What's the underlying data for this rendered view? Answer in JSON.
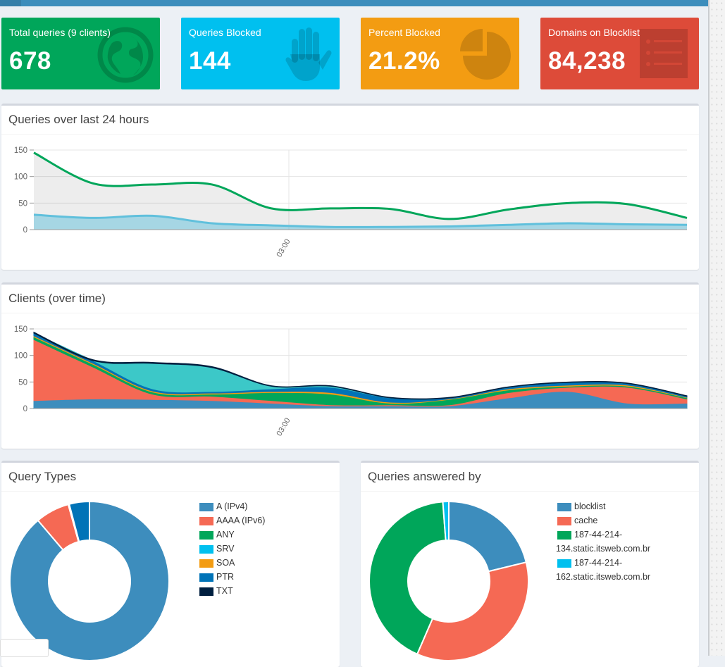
{
  "stats": [
    {
      "label": "Total queries (9 clients)",
      "value": "678",
      "color": "#00a65a",
      "icon": "globe-icon"
    },
    {
      "label": "Queries Blocked",
      "value": "144",
      "color": "#00c0ef",
      "icon": "hand-icon"
    },
    {
      "label": "Percent Blocked",
      "value": "21.2%",
      "color": "#f39c12",
      "icon": "pie-chart-icon"
    },
    {
      "label": "Domains on Blocklist",
      "value": "84,238",
      "color": "#dd4b39",
      "icon": "list-icon"
    }
  ],
  "queries_chart": {
    "title": "Queries over last 24 hours"
  },
  "clients_chart": {
    "title": "Clients (over time)"
  },
  "query_types": {
    "title": "Query Types"
  },
  "forward_destinations": {
    "title": "Queries answered by"
  },
  "chart_data": [
    {
      "type": "area",
      "ylim": [
        0,
        150
      ],
      "yticks": [
        "150",
        "100",
        "50",
        "0"
      ],
      "xticks": [
        "03:00"
      ],
      "series": [
        {
          "color": "#00a65a",
          "values": [
            145,
            87,
            85,
            85,
            40,
            40,
            39,
            20,
            38,
            50,
            48,
            22
          ]
        },
        {
          "color": "#60c0dc",
          "values": [
            28,
            22,
            26,
            12,
            8,
            5,
            5,
            6,
            9,
            12,
            10,
            9
          ]
        }
      ]
    },
    {
      "type": "area",
      "ylim": [
        0,
        150
      ],
      "yticks": [
        "150",
        "100",
        "50",
        "0"
      ],
      "xticks": [
        "03:00"
      ],
      "series": [
        {
          "color": "#3d8dbd",
          "values": [
            15,
            18,
            17,
            15,
            10,
            5,
            5,
            5,
            20,
            32,
            10,
            10
          ]
        },
        {
          "color": "#f56954",
          "values": [
            115,
            60,
            10,
            8,
            5,
            2,
            2,
            2,
            10,
            8,
            30,
            8
          ]
        },
        {
          "color": "#00a65a",
          "values": [
            5,
            5,
            4,
            4,
            15,
            20,
            3,
            10,
            5,
            2,
            2,
            2
          ]
        },
        {
          "color": "#f39c12",
          "values": [
            2,
            2,
            2,
            2,
            2,
            3,
            2,
            1,
            2,
            2,
            2,
            1
          ]
        },
        {
          "color": "#0073b7",
          "values": [
            5,
            5,
            4,
            3,
            5,
            10,
            8,
            2,
            3,
            5,
            3,
            2
          ]
        },
        {
          "color": "#3cc8c8",
          "values": [
            0,
            0,
            48,
            45,
            5,
            2,
            0,
            0,
            0,
            0,
            0,
            0
          ]
        },
        {
          "color": "#001f3f",
          "values": [
            2,
            2,
            2,
            2,
            1,
            1,
            1,
            1,
            1,
            1,
            1,
            1
          ]
        }
      ]
    },
    {
      "type": "pie",
      "labels": [
        "A (IPv4)",
        "AAAA (IPv6)",
        "ANY",
        "SRV",
        "SOA",
        "PTR",
        "TXT"
      ],
      "values": [
        88.8,
        6.9,
        0.2,
        0,
        0,
        4.1,
        0
      ],
      "colors": [
        "#3d8dbd",
        "#f56954",
        "#00a65a",
        "#00c0ef",
        "#f39c12",
        "#0073b7",
        "#001f3f"
      ]
    },
    {
      "type": "pie",
      "labels": [
        "blocklist",
        "cache",
        "187-44-214-134.static.itsweb.com.br",
        "187-44-214-162.static.itsweb.com.br"
      ],
      "legend_lines": [
        [
          "blocklist"
        ],
        [
          "cache"
        ],
        [
          "187-44-214-",
          "134.static.itsweb.com.br"
        ],
        [
          "187-44-214-",
          "162.static.itsweb.com.br"
        ]
      ],
      "values": [
        21.2,
        35.3,
        42.3,
        1.2
      ],
      "colors": [
        "#3d8dbd",
        "#f56954",
        "#00a65a",
        "#00c0ef"
      ]
    }
  ]
}
